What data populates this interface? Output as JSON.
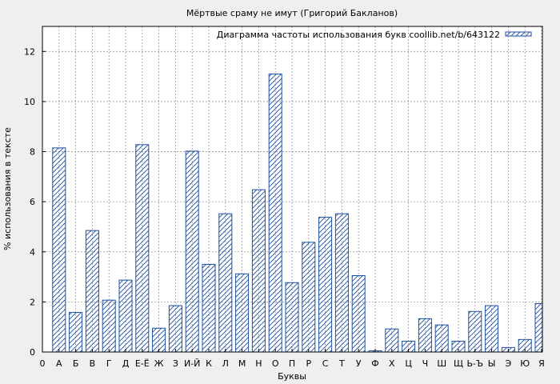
{
  "chart_data": {
    "type": "bar",
    "title": "Мёртвые сраму не имут (Григорий Бакланов)",
    "xlabel": "Буквы",
    "ylabel": "% использования в тексте",
    "legend": {
      "label": "Диаграмма частоты использования букв coollib.net/b/643122",
      "placement": "top-right"
    },
    "ylim": [
      0,
      13
    ],
    "yticks": [
      0,
      2,
      4,
      6,
      8,
      10,
      12
    ],
    "grid": true,
    "categories": [
      "0",
      "А",
      "Б",
      "В",
      "Г",
      "Д",
      "Е-Ё",
      "Ж",
      "З",
      "И-Й",
      "К",
      "Л",
      "М",
      "Н",
      "О",
      "П",
      "Р",
      "С",
      "Т",
      "У",
      "Ф",
      "Х",
      "Ц",
      "Ч",
      "Ш",
      "Щ",
      "Ь-Ъ",
      "Ы",
      "Э",
      "Ю",
      "Я"
    ],
    "values": [
      0,
      8.15,
      1.58,
      4.85,
      2.07,
      2.87,
      8.28,
      0.95,
      1.85,
      8.02,
      3.5,
      5.52,
      3.12,
      6.48,
      11.1,
      2.77,
      4.38,
      5.38,
      5.52,
      3.05,
      0.05,
      0.92,
      0.43,
      1.33,
      1.08,
      0.43,
      1.62,
      1.85,
      0.18,
      0.5,
      1.93
    ],
    "colors": {
      "bar": "#1f4fa0",
      "grid": "#9a9a9a",
      "plot_bg": "#ffffff",
      "page_bg": "#efefef"
    }
  }
}
